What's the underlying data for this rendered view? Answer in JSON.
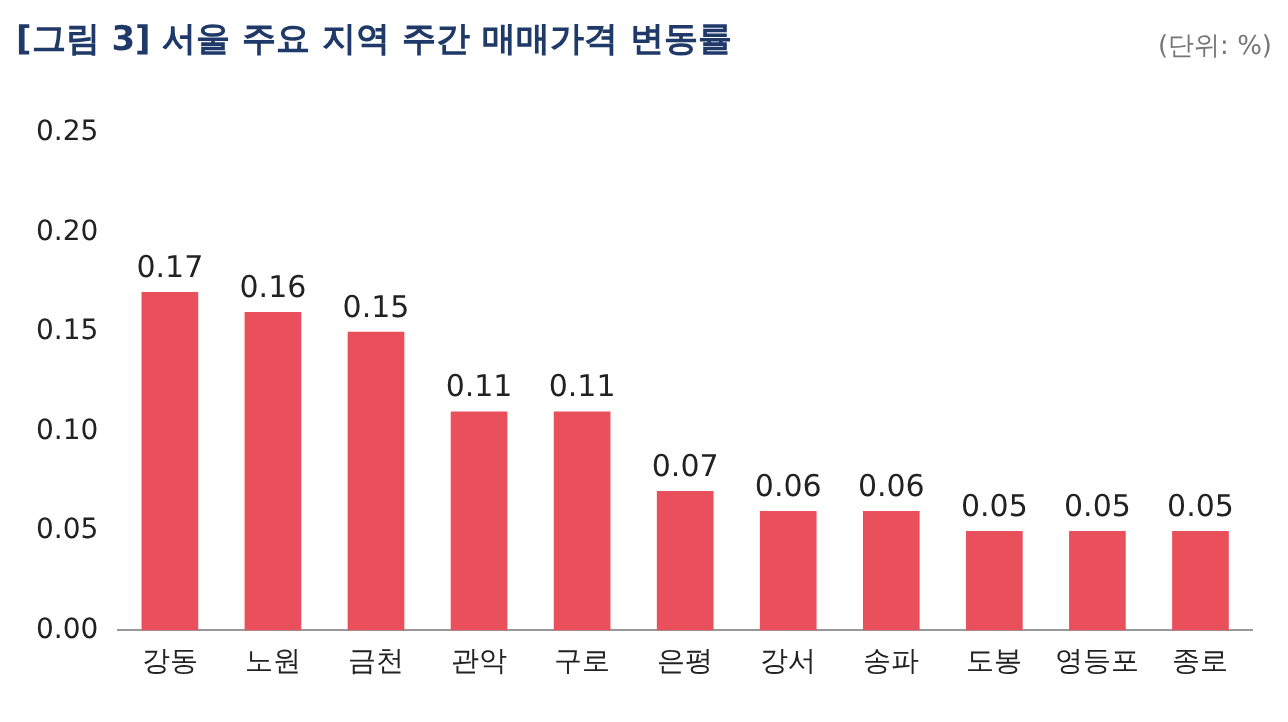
{
  "chart_data": {
    "type": "bar",
    "title": "[그림 3] 서울 주요 지역 주간 매매가격 변동률",
    "annotations": [
      "(단위: %)"
    ],
    "categories": [
      "강동",
      "노원",
      "금천",
      "관악",
      "구로",
      "은평",
      "강서",
      "송파",
      "도봉",
      "영등포",
      "종로"
    ],
    "values": [
      0.17,
      0.16,
      0.15,
      0.11,
      0.11,
      0.07,
      0.06,
      0.06,
      0.05,
      0.05,
      0.05
    ],
    "color": "#e9505c",
    "ylim": [
      0,
      0.25
    ],
    "yticks": [
      {
        "value": 0,
        "label": "0.00"
      },
      {
        "value": 0.05,
        "label": "0.05"
      },
      {
        "value": 0.1,
        "label": "0.10"
      },
      {
        "value": 0.15,
        "label": "0.15"
      },
      {
        "value": 0.2,
        "label": "0.20"
      },
      {
        "value": 0.25,
        "label": "0.25"
      }
    ],
    "grid": false,
    "legend": false,
    "data_labels": true
  }
}
